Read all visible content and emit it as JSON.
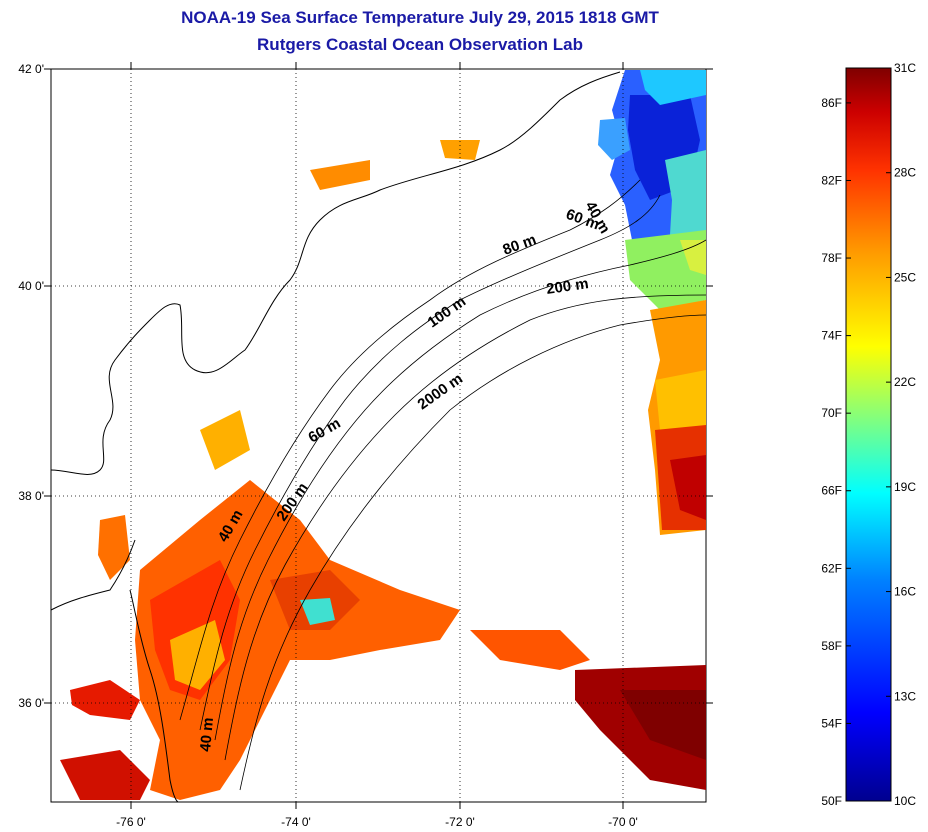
{
  "titles": {
    "line1": "NOAA-19 Sea Surface Temperature July 29, 2015 1818 GMT",
    "line2": "Rutgers Coastal Ocean Observation Lab"
  },
  "axes": {
    "lat_labels": [
      "42 0'",
      "40 0'",
      "38 0'",
      "36 0'"
    ],
    "lon_labels": [
      "-76 0'",
      "-74 0'",
      "-72 0'",
      "-70 0'"
    ]
  },
  "isobath_labels": [
    "40 m",
    "60 m",
    "80 m",
    "200 m",
    "100 m",
    "2000 m",
    "60 m",
    "40 m",
    "200 m",
    "40 m"
  ],
  "colorbar": {
    "fahrenheit": [
      "86F",
      "82F",
      "78F",
      "74F",
      "70F",
      "66F",
      "62F",
      "58F",
      "54F",
      "50F"
    ],
    "celsius": [
      "31C",
      "28C",
      "25C",
      "22C",
      "19C",
      "16C",
      "13C",
      "10C"
    ],
    "fahrenheit_values": [
      86,
      82,
      78,
      74,
      70,
      66,
      62,
      58,
      54,
      50
    ],
    "celsius_values": [
      31,
      28,
      25,
      22,
      19,
      16,
      13,
      10
    ],
    "range_c": [
      10,
      31
    ],
    "colors": [
      "#7f0000",
      "#cc0000",
      "#ff4000",
      "#ff9900",
      "#ffff00",
      "#80ff80",
      "#00ffff",
      "#0080ff",
      "#0000ff",
      "#00008f"
    ]
  }
}
